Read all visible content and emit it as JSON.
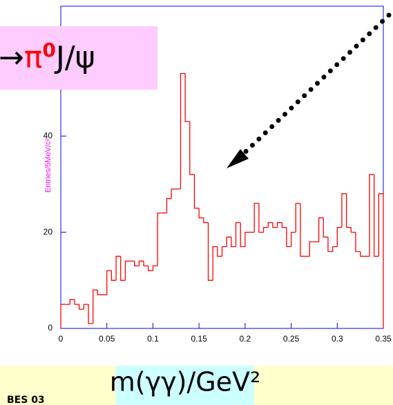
{
  "chart_data": {
    "type": "histogram",
    "y_label": "Entries/5MeV/c²",
    "x_label": "m(γγ)/GeV²",
    "decay_label": [
      "γ→",
      "π",
      "0",
      "J/ψ"
    ],
    "footer": "BES 03",
    "color": "#ff0000",
    "frame_color": "#0000ff",
    "label_color": "#ff00ff",
    "bins": [
      0,
      0.005,
      0.01,
      0.015,
      0.02,
      0.025,
      0.03,
      0.035,
      0.04,
      0.045,
      0.05,
      0.055,
      0.06,
      0.065,
      0.07,
      0.075,
      0.08,
      0.085,
      0.09,
      0.095,
      0.1,
      0.105,
      0.11,
      0.115,
      0.12,
      0.125,
      0.13,
      0.135,
      0.14,
      0.145,
      0.15,
      0.155,
      0.16,
      0.165,
      0.17,
      0.175,
      0.18,
      0.185,
      0.19,
      0.195,
      0.2,
      0.205,
      0.21,
      0.215,
      0.22,
      0.225,
      0.23,
      0.235,
      0.24,
      0.245,
      0.25,
      0.255,
      0.26,
      0.265,
      0.27,
      0.275,
      0.28,
      0.285,
      0.29,
      0.295,
      0.3,
      0.305,
      0.31,
      0.315,
      0.32,
      0.325,
      0.33,
      0.335,
      0.34,
      0.345,
      0.35
    ],
    "values": [
      5,
      5,
      6,
      5,
      4,
      5,
      1,
      8,
      7,
      7,
      12,
      10,
      15,
      10,
      14,
      14,
      13,
      14,
      13,
      12,
      13,
      24,
      24,
      27,
      29,
      29,
      53,
      43,
      32,
      25,
      23,
      22,
      10,
      17,
      15,
      17,
      19,
      17,
      22,
      17,
      20,
      20,
      26,
      20,
      21,
      22,
      21,
      22,
      21,
      17,
      20,
      26,
      15,
      15,
      18,
      18,
      23,
      19,
      16,
      17,
      21,
      28,
      21,
      20,
      16,
      15,
      15,
      32,
      15,
      28
    ],
    "xlim": [
      0,
      0.35
    ],
    "xticks": [
      0,
      0.05,
      0.1,
      0.15,
      0.2,
      0.25,
      0.3,
      0.35
    ],
    "ylim": [
      0,
      67
    ],
    "yticks": [
      0,
      20,
      40
    ]
  }
}
